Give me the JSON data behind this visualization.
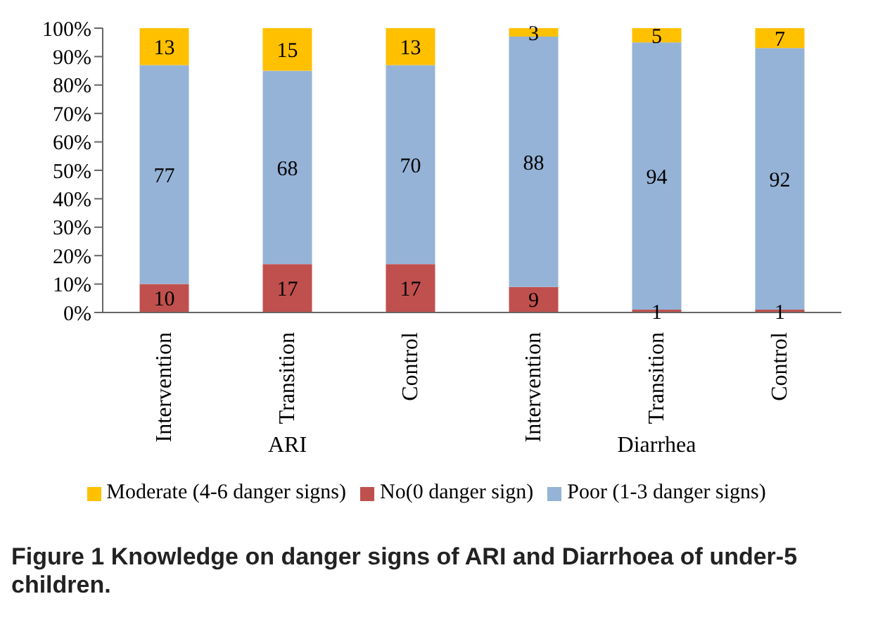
{
  "chart_data": {
    "type": "bar",
    "stacked": true,
    "title": "Figure 1 Knowledge on danger signs of ARI and Diarrhoea of under-5 children.",
    "categories": [
      "Intervention",
      "Transition",
      "Control",
      "Intervention",
      "Transition",
      "Control"
    ],
    "series": [
      {
        "name": "No(0 danger sign)",
        "color": "#c0504d",
        "values": [
          10,
          17,
          17,
          9,
          1,
          1
        ]
      },
      {
        "name": "Poor (1-3 danger signs)",
        "color": "#95b3d7",
        "values": [
          77,
          68,
          70,
          88,
          94,
          92
        ]
      },
      {
        "name": "Moderate (4-6 danger signs)",
        "color": "#ffc000",
        "values": [
          13,
          15,
          13,
          3,
          5,
          7
        ]
      }
    ],
    "ylim": [
      0,
      100
    ],
    "yticks": [
      {
        "value": 0,
        "label": "0%"
      },
      {
        "value": 10,
        "label": "10%"
      },
      {
        "value": 20,
        "label": "20%"
      },
      {
        "value": 30,
        "label": "30%"
      },
      {
        "value": 40,
        "label": "40%"
      },
      {
        "value": 50,
        "label": "50%"
      },
      {
        "value": 60,
        "label": "60%"
      },
      {
        "value": 70,
        "label": "70%"
      },
      {
        "value": 80,
        "label": "80%"
      },
      {
        "value": 90,
        "label": "90%"
      },
      {
        "value": 100,
        "label": "100%"
      }
    ],
    "annotations": [
      "ARI",
      "Diarrhea"
    ],
    "data_labels": true,
    "legend": "bottom",
    "grid": false
  }
}
